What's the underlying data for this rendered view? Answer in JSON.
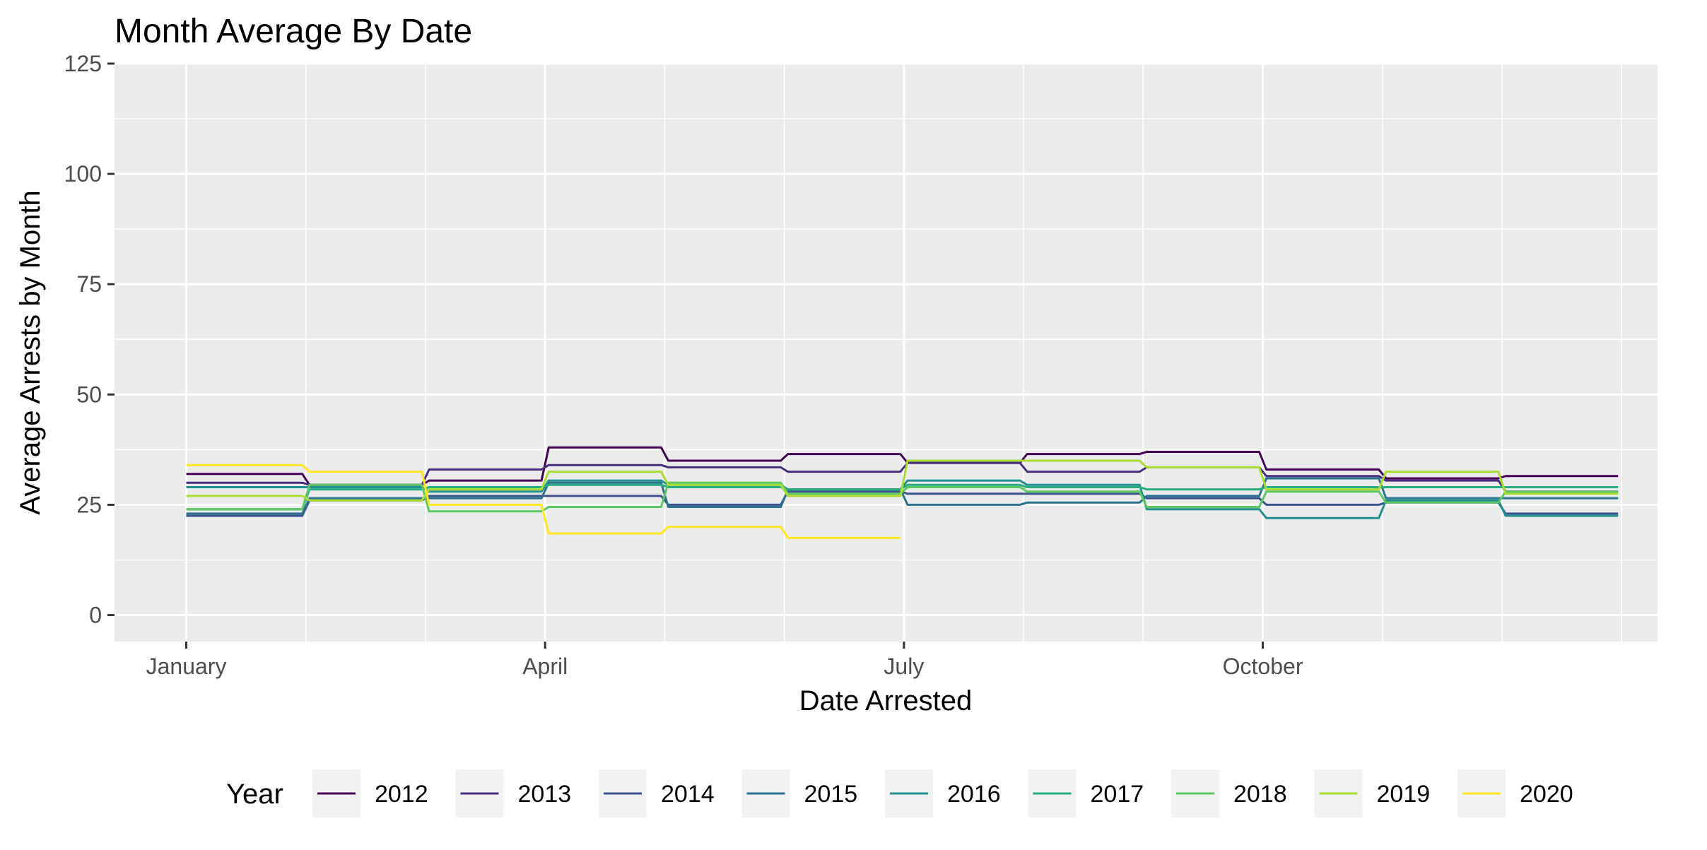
{
  "chart_data": {
    "type": "line",
    "title": "Month Average By Date",
    "xlabel": "Date Arrested",
    "ylabel": "Average Arrests by Month",
    "x_ticks": [
      "January",
      "April",
      "July",
      "October"
    ],
    "x_tick_months": [
      1,
      4,
      7,
      10
    ],
    "x_range_months": [
      0.4,
      13.3
    ],
    "y_ticks": [
      0,
      25,
      50,
      75,
      100,
      125
    ],
    "ylim": [
      -6,
      125
    ],
    "grid": true,
    "legend": {
      "title": "Year",
      "position": "bottom"
    },
    "series": [
      {
        "name": "2012",
        "color": "#440154",
        "values": [
          32.0,
          29.5,
          30.5,
          38.0,
          35.0,
          36.5,
          34.5,
          36.5,
          37.0,
          33.0,
          31.0,
          31.5
        ]
      },
      {
        "name": "2013",
        "color": "#472D7B",
        "values": [
          30.0,
          29.5,
          33.0,
          34.0,
          33.5,
          32.5,
          34.5,
          32.5,
          33.5,
          31.5,
          30.5,
          28.0
        ]
      },
      {
        "name": "2014",
        "color": "#3B528B",
        "values": [
          22.5,
          26.0,
          27.0,
          27.0,
          25.0,
          28.0,
          27.5,
          27.5,
          26.5,
          25.0,
          25.5,
          23.0
        ]
      },
      {
        "name": "2015",
        "color": "#2C728E",
        "values": [
          23.0,
          26.5,
          26.5,
          30.0,
          24.5,
          28.5,
          25.0,
          25.5,
          27.0,
          31.0,
          26.5,
          26.5
        ]
      },
      {
        "name": "2016",
        "color": "#21908C",
        "values": [
          29.0,
          29.0,
          28.0,
          30.5,
          29.5,
          28.5,
          30.5,
          29.5,
          24.0,
          22.0,
          26.0,
          22.5
        ]
      },
      {
        "name": "2017",
        "color": "#27AD81",
        "values": [
          24.0,
          28.5,
          29.0,
          29.5,
          29.0,
          28.5,
          29.5,
          29.0,
          28.5,
          29.0,
          29.0,
          29.0
        ]
      },
      {
        "name": "2018",
        "color": "#5DC863",
        "values": [
          24.0,
          29.5,
          23.5,
          24.5,
          30.0,
          27.5,
          29.0,
          28.0,
          24.5,
          28.0,
          25.5,
          28.0
        ]
      },
      {
        "name": "2019",
        "color": "#AADC32",
        "values": [
          27.0,
          26.0,
          28.5,
          32.5,
          29.5,
          27.0,
          35.0,
          35.0,
          33.5,
          28.5,
          32.5,
          27.5
        ]
      },
      {
        "name": "2020",
        "color": "#FDE725",
        "values": [
          34.0,
          32.5,
          25.0,
          18.5,
          20.0,
          17.5
        ]
      }
    ]
  }
}
